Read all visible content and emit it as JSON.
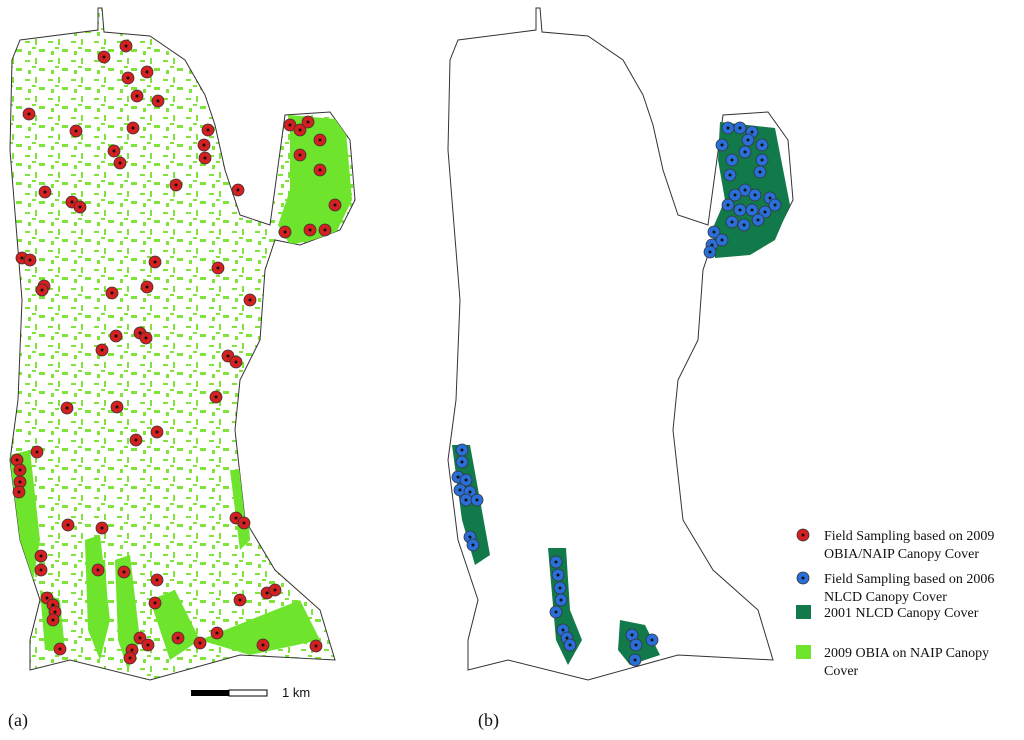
{
  "panels": [
    {
      "label": "(a)"
    },
    {
      "label": "(b)"
    }
  ],
  "scale_bar": {
    "label": "1 km"
  },
  "legend": {
    "items": [
      {
        "lines": [
          "Field Sampling based on 2009",
          "OBIA/NAIP  Canopy Cover"
        ]
      },
      {
        "lines": [
          "Field Sampling based on 2006",
          "NLCD Canopy Cover"
        ]
      },
      {
        "lines": [
          "2001 NLCD Canopy Cover"
        ]
      },
      {
        "lines": [
          "2009 OBIA  on NAIP Canopy",
          "Cover"
        ]
      }
    ]
  }
}
